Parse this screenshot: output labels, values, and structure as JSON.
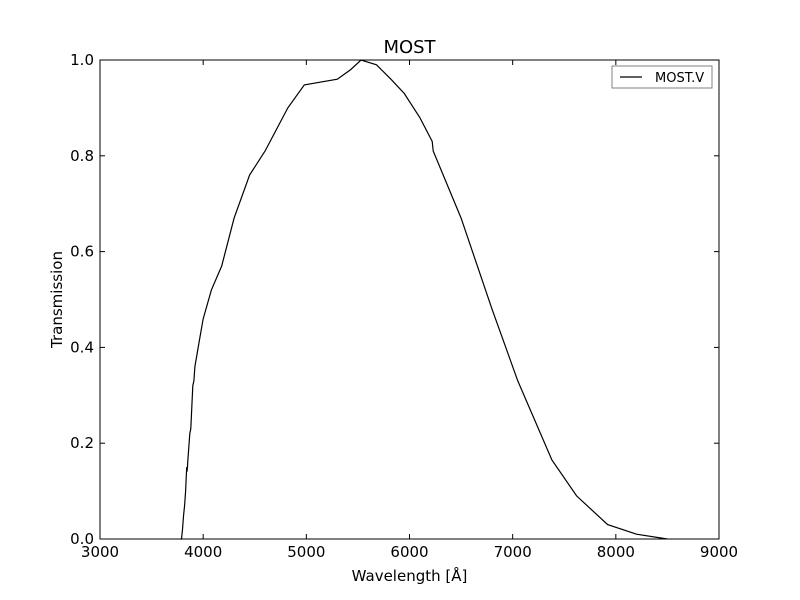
{
  "chart_data": {
    "type": "line",
    "title": "MOST",
    "xlabel": "Wavelength [Å]",
    "ylabel": "Transmission",
    "xlim": [
      3000,
      9000
    ],
    "ylim": [
      0.0,
      1.0
    ],
    "xticks": [
      3000,
      4000,
      5000,
      6000,
      7000,
      8000,
      9000
    ],
    "yticks": [
      0.0,
      0.2,
      0.4,
      0.6,
      0.8,
      1.0
    ],
    "xtick_labels": [
      "3000",
      "4000",
      "5000",
      "6000",
      "7000",
      "8000",
      "9000"
    ],
    "ytick_labels": [
      "0.0",
      "0.2",
      "0.4",
      "0.6",
      "0.8",
      "1.0"
    ],
    "grid": false,
    "legend": {
      "position": "top-right",
      "entries": [
        "MOST.V"
      ]
    },
    "series": [
      {
        "name": "MOST.V",
        "color": "#000000",
        "x": [
          3780,
          3790,
          3800,
          3810,
          3820,
          3830,
          3840,
          3842,
          3848,
          3850,
          3870,
          3880,
          3900,
          3910,
          3920,
          3960,
          4000,
          4080,
          4180,
          4300,
          4450,
          4600,
          4820,
          4980,
          5300,
          5430,
          5530,
          5680,
          5820,
          5950,
          6100,
          6220,
          6230,
          6500,
          6800,
          7050,
          7380,
          7620,
          7920,
          8200,
          8500
        ],
        "y": [
          0.0,
          0.0,
          0.02,
          0.05,
          0.07,
          0.1,
          0.15,
          0.14,
          0.15,
          0.16,
          0.22,
          0.23,
          0.32,
          0.33,
          0.36,
          0.41,
          0.46,
          0.52,
          0.57,
          0.67,
          0.76,
          0.81,
          0.9,
          0.948,
          0.96,
          0.98,
          1.0,
          0.99,
          0.96,
          0.93,
          0.88,
          0.83,
          0.81,
          0.67,
          0.48,
          0.33,
          0.165,
          0.09,
          0.03,
          0.01,
          0.0
        ]
      }
    ]
  }
}
